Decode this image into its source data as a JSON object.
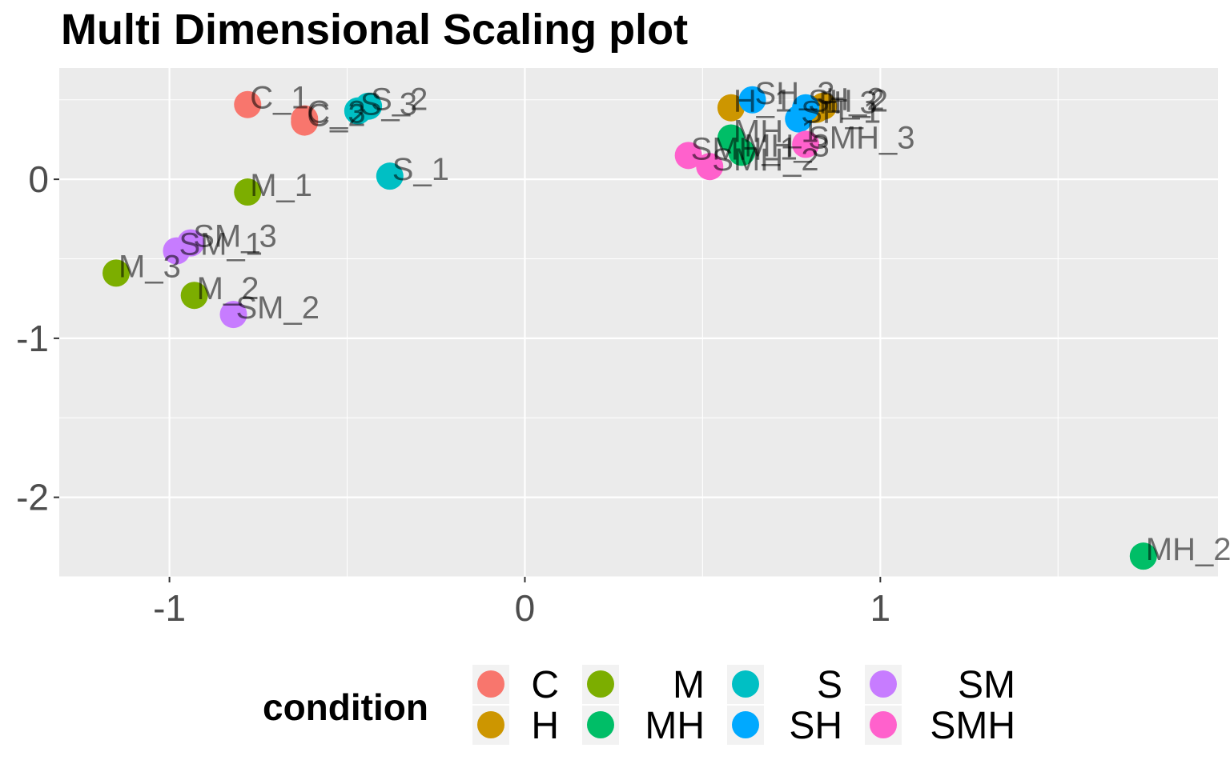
{
  "chart_data": {
    "type": "scatter",
    "title": "Multi Dimensional Scaling plot",
    "xlabel": "",
    "ylabel": "",
    "xlim": [
      -1.31,
      1.95
    ],
    "ylim": [
      -2.5,
      0.7
    ],
    "x_ticks": [
      -1,
      0,
      1
    ],
    "y_ticks": [
      0,
      -1,
      -2
    ],
    "x_tick_labels": [
      "-1",
      "0",
      "1"
    ],
    "y_tick_labels": [
      "0",
      "-1",
      "-2"
    ],
    "grid": true,
    "legend": {
      "title": "condition",
      "position": "bottom"
    },
    "series": [
      {
        "name": "C",
        "color": "#F8766D",
        "points": [
          {
            "label": "C_1",
            "x": -0.78,
            "y": 0.47
          },
          {
            "label": "C_2",
            "x": -0.62,
            "y": 0.36
          },
          {
            "label": "C_3",
            "x": -0.62,
            "y": 0.38
          }
        ]
      },
      {
        "name": "H",
        "color": "#CD9600",
        "points": [
          {
            "label": "H_1",
            "x": 0.58,
            "y": 0.45
          },
          {
            "label": "H_2",
            "x": 0.84,
            "y": 0.46
          },
          {
            "label": "H_3",
            "x": 0.82,
            "y": 0.44
          }
        ]
      },
      {
        "name": "M",
        "color": "#7CAE00",
        "points": [
          {
            "label": "M_1",
            "x": -0.78,
            "y": -0.08
          },
          {
            "label": "M_2",
            "x": -0.93,
            "y": -0.73
          },
          {
            "label": "M_3",
            "x": -1.15,
            "y": -0.59
          }
        ]
      },
      {
        "name": "MH",
        "color": "#00BE67",
        "points": [
          {
            "label": "MH_1",
            "x": 0.58,
            "y": 0.26
          },
          {
            "label": "MH_2",
            "x": 1.74,
            "y": -2.37
          },
          {
            "label": "MH_3",
            "x": 0.61,
            "y": 0.17
          }
        ]
      },
      {
        "name": "S",
        "color": "#00BFC4",
        "points": [
          {
            "label": "S_1",
            "x": -0.38,
            "y": 0.02
          },
          {
            "label": "S_2",
            "x": -0.44,
            "y": 0.46
          },
          {
            "label": "S_3",
            "x": -0.47,
            "y": 0.43
          }
        ]
      },
      {
        "name": "SH",
        "color": "#00A9FF",
        "points": [
          {
            "label": "SH_1",
            "x": 0.77,
            "y": 0.38
          },
          {
            "label": "SH_2",
            "x": 0.79,
            "y": 0.45
          },
          {
            "label": "SH_3",
            "x": 0.64,
            "y": 0.5
          }
        ]
      },
      {
        "name": "SM",
        "color": "#C77CFF",
        "points": [
          {
            "label": "SM_1",
            "x": -0.98,
            "y": -0.45
          },
          {
            "label": "SM_2",
            "x": -0.82,
            "y": -0.85
          },
          {
            "label": "SM_3",
            "x": -0.94,
            "y": -0.4
          }
        ]
      },
      {
        "name": "SMH",
        "color": "#FF61CC",
        "points": [
          {
            "label": "SMH_1",
            "x": 0.46,
            "y": 0.15
          },
          {
            "label": "SMH_2",
            "x": 0.52,
            "y": 0.08
          },
          {
            "label": "SMH_3",
            "x": 0.79,
            "y": 0.22
          }
        ]
      }
    ]
  }
}
